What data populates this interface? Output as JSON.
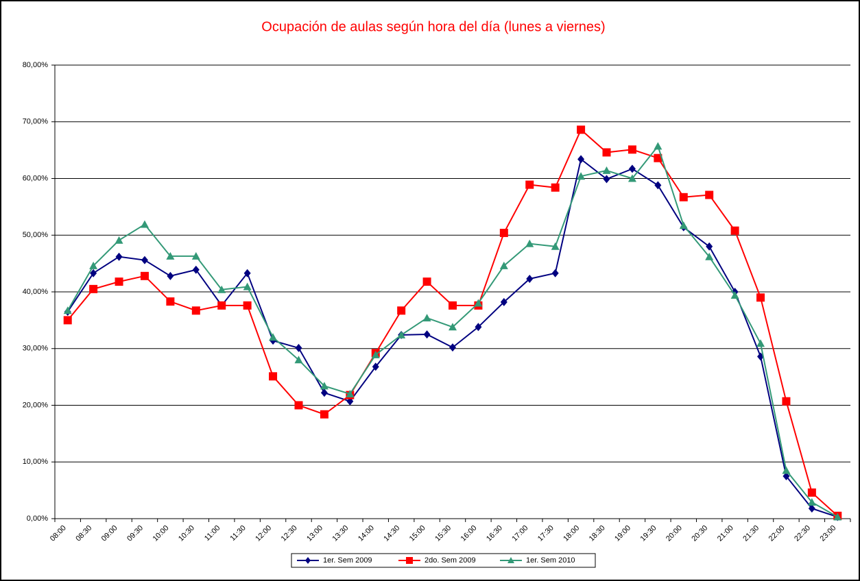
{
  "chart_data": {
    "type": "line",
    "title": "Ocupación de aulas según hora del día (lunes a viernes)",
    "categories": [
      "08:00",
      "08:30",
      "09:00",
      "09:30",
      "10:00",
      "10:30",
      "11:00",
      "11:30",
      "12:00",
      "12:30",
      "13:00",
      "13:30",
      "14:00",
      "14:30",
      "15:00",
      "15:30",
      "16:00",
      "16:30",
      "17:00",
      "17:30",
      "18:00",
      "18:30",
      "19:00",
      "19:30",
      "20:00",
      "20:30",
      "21:00",
      "21:30",
      "22:00",
      "22:30",
      "23:00"
    ],
    "series": [
      {
        "name": "1er. Sem 2009",
        "color": "#000080",
        "marker": "diamond",
        "values": [
          36.5,
          43.3,
          46.2,
          45.6,
          42.8,
          43.9,
          37.6,
          43.3,
          31.4,
          30.1,
          22.2,
          20.7,
          26.8,
          32.4,
          32.5,
          30.2,
          33.8,
          38.2,
          42.3,
          43.3,
          63.4,
          59.9,
          61.7,
          58.8,
          51.4,
          48.0,
          40.0,
          28.6,
          7.5,
          1.8,
          0.3
        ]
      },
      {
        "name": "2do. Sem 2009",
        "color": "#ff0000",
        "marker": "square",
        "values": [
          35.0,
          40.5,
          41.8,
          42.8,
          38.3,
          36.7,
          37.6,
          37.6,
          25.1,
          20.0,
          18.4,
          21.8,
          29.2,
          36.7,
          41.8,
          37.6,
          37.6,
          50.4,
          58.9,
          58.4,
          68.6,
          64.6,
          65.1,
          63.6,
          56.7,
          57.1,
          50.8,
          39.0,
          20.7,
          4.6,
          0.5
        ]
      },
      {
        "name": "1er. Sem 2010",
        "color": "#339977",
        "marker": "triangle",
        "values": [
          36.7,
          44.6,
          49.1,
          51.9,
          46.3,
          46.3,
          40.4,
          40.9,
          32.0,
          28.0,
          23.4,
          22.0,
          28.9,
          32.4,
          35.4,
          33.8,
          38.0,
          44.6,
          48.5,
          48.0,
          60.4,
          61.4,
          60.0,
          65.7,
          51.7,
          46.2,
          39.4,
          30.9,
          8.5,
          2.9,
          0.3
        ]
      }
    ],
    "ylim": [
      0,
      80
    ],
    "yticks": [
      {
        "value": 0,
        "label": "0,00%"
      },
      {
        "value": 10,
        "label": "10,00%"
      },
      {
        "value": 20,
        "label": "20,00%"
      },
      {
        "value": 30,
        "label": "30,00%"
      },
      {
        "value": 40,
        "label": "40,00%"
      },
      {
        "value": 50,
        "label": "50,00%"
      },
      {
        "value": 60,
        "label": "60,00%"
      },
      {
        "value": 70,
        "label": "70,00%"
      },
      {
        "value": 80,
        "label": "80,00%"
      }
    ],
    "grid": true,
    "legend": "bottom"
  }
}
